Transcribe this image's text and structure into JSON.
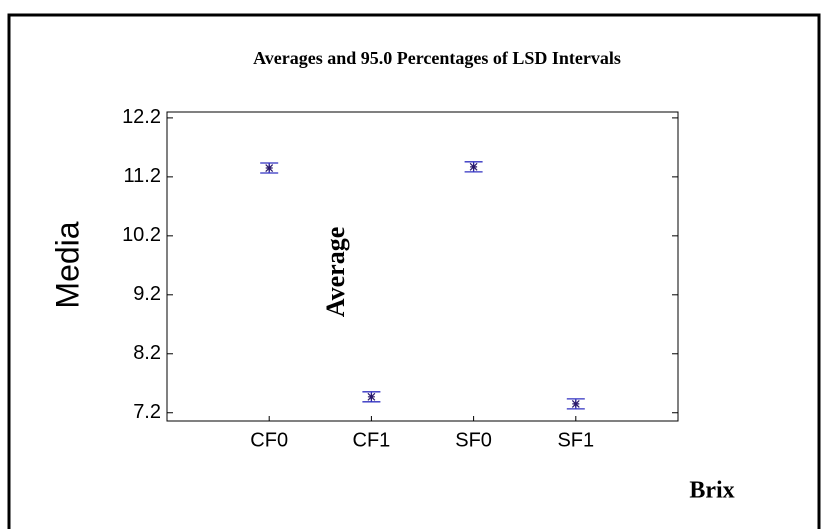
{
  "chart_data": {
    "type": "errorbar",
    "title": "Averages and 95.0 Percentages of LSD Intervals",
    "y_label": "Media",
    "annotation": "Average",
    "x_label": "Brix",
    "categories": [
      "CF0",
      "CF1",
      "SF0",
      "SF1"
    ],
    "values": [
      11.35,
      7.47,
      11.37,
      7.35
    ],
    "errors": [
      0.085,
      0.085,
      0.085,
      0.085
    ],
    "color": "#3030c0",
    "marker_color": "#2a1a6a",
    "ylim": [
      7.06,
      12.3
    ],
    "yticks": [
      {
        "value": 7.2,
        "label": "7.2"
      },
      {
        "value": 8.2,
        "label": "8.2"
      },
      {
        "value": 9.2,
        "label": "9.2"
      },
      {
        "value": 10.2,
        "label": "10.2"
      },
      {
        "value": 11.2,
        "label": "11.2"
      },
      {
        "value": 12.2,
        "label": "12.2"
      }
    ],
    "grid": false
  }
}
